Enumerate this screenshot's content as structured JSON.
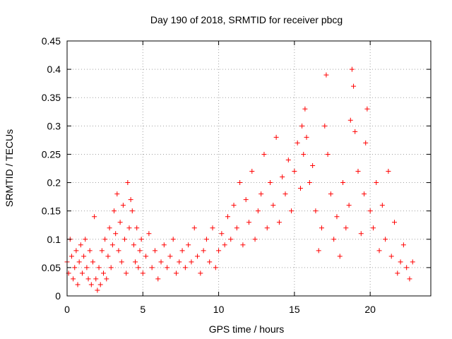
{
  "chart_data": {
    "type": "scatter",
    "title": "Day 190 of 2018, SRMTID for receiver pbcg",
    "xlabel": "GPS time / hours",
    "ylabel": "SRMTID / TECUs",
    "xlim": [
      0,
      24
    ],
    "ylim": [
      0,
      0.45
    ],
    "xticks": [
      0,
      5,
      10,
      15,
      20
    ],
    "xtick_labels": [
      "0",
      "5",
      "10",
      "15",
      "20"
    ],
    "yticks": [
      0,
      0.05,
      0.1,
      0.15,
      0.2,
      0.25,
      0.3,
      0.35,
      0.4,
      0.45
    ],
    "ytick_labels": [
      "0",
      "0.05",
      "0.1",
      "0.15",
      "0.2",
      "0.25",
      "0.3",
      "0.35",
      "0.4",
      "0.45"
    ],
    "grid": true,
    "marker": "+",
    "color": "#ff0000",
    "series": [
      {
        "name": "SRMTID",
        "x": [
          0.0,
          0.1,
          0.2,
          0.3,
          0.4,
          0.5,
          0.6,
          0.7,
          0.8,
          0.9,
          1.0,
          1.1,
          1.2,
          1.3,
          1.4,
          1.5,
          1.6,
          1.7,
          1.8,
          1.9,
          2.0,
          2.1,
          2.2,
          2.3,
          2.4,
          2.5,
          2.6,
          2.7,
          2.8,
          2.9,
          3.0,
          3.1,
          3.2,
          3.3,
          3.4,
          3.5,
          3.6,
          3.7,
          3.8,
          3.9,
          4.0,
          4.1,
          4.2,
          4.3,
          4.4,
          4.5,
          4.6,
          4.7,
          4.8,
          4.9,
          5.0,
          5.2,
          5.4,
          5.6,
          5.8,
          6.0,
          6.2,
          6.4,
          6.6,
          6.8,
          7.0,
          7.2,
          7.4,
          7.6,
          7.8,
          8.0,
          8.2,
          8.4,
          8.6,
          8.8,
          9.0,
          9.2,
          9.4,
          9.6,
          9.8,
          10.0,
          10.2,
          10.4,
          10.6,
          10.8,
          11.0,
          11.2,
          11.4,
          11.6,
          11.8,
          12.0,
          12.2,
          12.4,
          12.6,
          12.8,
          13.0,
          13.2,
          13.4,
          13.6,
          13.8,
          14.0,
          14.2,
          14.4,
          14.6,
          14.8,
          15.0,
          15.2,
          15.4,
          15.5,
          15.6,
          15.7,
          15.8,
          16.0,
          16.2,
          16.4,
          16.6,
          16.8,
          17.0,
          17.1,
          17.2,
          17.4,
          17.6,
          17.8,
          18.0,
          18.2,
          18.4,
          18.6,
          18.7,
          18.8,
          18.9,
          19.0,
          19.2,
          19.4,
          19.6,
          19.7,
          19.8,
          20.0,
          20.2,
          20.4,
          20.6,
          20.8,
          21.0,
          21.2,
          21.4,
          21.6,
          21.8,
          22.0,
          22.2,
          22.4,
          22.6,
          22.8
        ],
        "y": [
          0.06,
          0.04,
          0.1,
          0.07,
          0.03,
          0.05,
          0.08,
          0.02,
          0.06,
          0.09,
          0.04,
          0.07,
          0.1,
          0.05,
          0.03,
          0.08,
          0.02,
          0.06,
          0.14,
          0.03,
          0.01,
          0.05,
          0.02,
          0.08,
          0.04,
          0.1,
          0.03,
          0.07,
          0.12,
          0.05,
          0.09,
          0.15,
          0.11,
          0.18,
          0.08,
          0.13,
          0.06,
          0.16,
          0.1,
          0.04,
          0.2,
          0.12,
          0.17,
          0.15,
          0.09,
          0.06,
          0.12,
          0.05,
          0.08,
          0.1,
          0.04,
          0.07,
          0.11,
          0.05,
          0.08,
          0.03,
          0.06,
          0.09,
          0.05,
          0.07,
          0.1,
          0.04,
          0.06,
          0.08,
          0.05,
          0.09,
          0.06,
          0.12,
          0.07,
          0.04,
          0.08,
          0.1,
          0.06,
          0.12,
          0.05,
          0.08,
          0.11,
          0.09,
          0.14,
          0.1,
          0.16,
          0.12,
          0.2,
          0.09,
          0.17,
          0.13,
          0.22,
          0.1,
          0.15,
          0.18,
          0.25,
          0.12,
          0.2,
          0.16,
          0.28,
          0.13,
          0.21,
          0.18,
          0.24,
          0.15,
          0.22,
          0.27,
          0.19,
          0.3,
          0.25,
          0.33,
          0.28,
          0.2,
          0.23,
          0.15,
          0.08,
          0.12,
          0.3,
          0.39,
          0.25,
          0.18,
          0.1,
          0.14,
          0.07,
          0.2,
          0.12,
          0.16,
          0.31,
          0.4,
          0.37,
          0.29,
          0.22,
          0.11,
          0.18,
          0.27,
          0.33,
          0.15,
          0.12,
          0.2,
          0.08,
          0.16,
          0.1,
          0.22,
          0.07,
          0.13,
          0.04,
          0.06,
          0.09,
          0.05,
          0.03,
          0.06
        ]
      }
    ]
  }
}
